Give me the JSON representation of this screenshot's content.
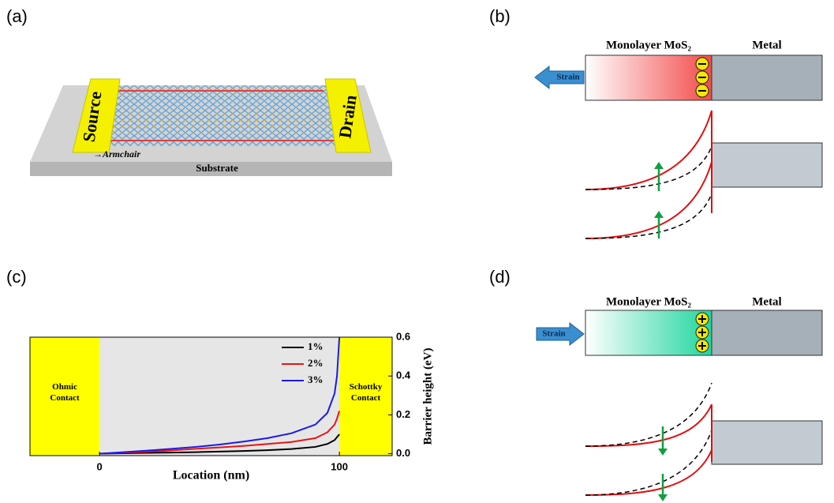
{
  "panels": {
    "a": {
      "label": "(a)",
      "source": "Source",
      "drain": "Drain",
      "direction": "Armchair",
      "substrate": "Substrate"
    },
    "b": {
      "label": "(b)",
      "semiconductor": "Monolayer MoS₂",
      "metal": "Metal",
      "strain": "Strain"
    },
    "c": {
      "label": "(c)"
    },
    "d": {
      "label": "(d)",
      "semiconductor": "Monolayer MoS₂",
      "metal": "Metal",
      "strain": "Strain"
    }
  },
  "chart_data": {
    "type": "line",
    "x_label": "Location (nm)",
    "y_label": "Barrier height (eV)",
    "left_region": "Ohmic Contact",
    "right_region": "Schottky Contact",
    "x": [
      0,
      10,
      20,
      30,
      40,
      50,
      60,
      70,
      80,
      90,
      95,
      98,
      99,
      100
    ],
    "series": [
      {
        "name": "1%",
        "color": "#000000",
        "values": [
          0,
          0.002,
          0.004,
          0.006,
          0.008,
          0.011,
          0.014,
          0.018,
          0.024,
          0.035,
          0.05,
          0.07,
          0.085,
          0.1
        ]
      },
      {
        "name": "2%",
        "color": "#e81414",
        "values": [
          0,
          0.005,
          0.01,
          0.017,
          0.025,
          0.032,
          0.04,
          0.05,
          0.06,
          0.08,
          0.11,
          0.15,
          0.18,
          0.22
        ]
      },
      {
        "name": "3%",
        "color": "#1a1aeb",
        "values": [
          0,
          0.008,
          0.016,
          0.025,
          0.035,
          0.047,
          0.062,
          0.08,
          0.105,
          0.15,
          0.21,
          0.31,
          0.4,
          0.6
        ]
      }
    ],
    "xlim": [
      -29,
      122
    ],
    "ylim": [
      -0.01,
      0.6
    ],
    "xticks": [
      0,
      100
    ],
    "yticks": [
      {
        "value": 0,
        "label": "0.0"
      },
      0.2,
      0.4,
      0.6
    ],
    "legend": "upper right"
  }
}
